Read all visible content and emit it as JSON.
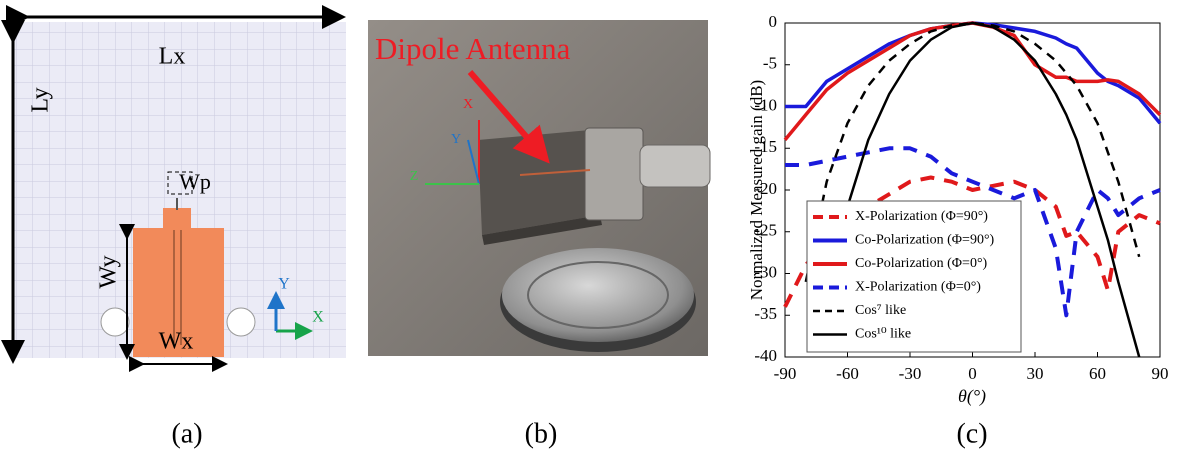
{
  "panels": {
    "a": {
      "labels": {
        "lx": "Lx",
        "ly": "Ly",
        "wp": "Wp",
        "wy": "Wy",
        "wx": "Wx",
        "axis_y": "Y",
        "axis_x": "X"
      },
      "caption": "(a)"
    },
    "b": {
      "label": "Dipole Antenna",
      "axes": {
        "x": "X",
        "y": "Y",
        "z": "Z"
      },
      "caption": "(b)"
    },
    "c": {
      "caption": "(c)"
    }
  },
  "chart_data": {
    "type": "line",
    "xlabel": "θ(°)",
    "ylabel": "Normalized Measured gain (dB)",
    "x": [
      -90,
      -80,
      -70,
      -60,
      -50,
      -40,
      -30,
      -20,
      -10,
      0,
      10,
      20,
      30,
      40,
      45,
      50,
      60,
      65,
      70,
      80,
      90
    ],
    "series": [
      {
        "name": "X-Polarization (Φ=90°)",
        "color": "#e0191b",
        "dashed": true,
        "values": [
          -34,
          -29,
          -26,
          -24,
          -22,
          -20.5,
          -19,
          -18.5,
          -19,
          -20,
          -19.5,
          -19,
          -20,
          -22,
          -25.5,
          -25,
          -28,
          -32,
          -25,
          -23,
          -24
        ]
      },
      {
        "name": "Co-Polarization (Φ=90°)",
        "color": "#1a1adb",
        "dashed": false,
        "values": [
          -10,
          -10,
          -7,
          -5.5,
          -4,
          -2.5,
          -1.5,
          -0.7,
          -0.3,
          0,
          -0.2,
          -0.6,
          -1,
          -1.8,
          -2.5,
          -3,
          -6,
          -7,
          -7.5,
          -9,
          -12
        ]
      },
      {
        "name": "Co-Polarization (Φ=0°)",
        "color": "#e0191b",
        "dashed": false,
        "values": [
          -14,
          -11,
          -8,
          -6,
          -4.5,
          -3,
          -1.5,
          -0.7,
          -0.3,
          0,
          -0.5,
          -1.5,
          -5,
          -6.5,
          -6.5,
          -7,
          -7,
          -6.8,
          -7,
          -8.5,
          -11
        ]
      },
      {
        "name": "X-Polarization (Φ=0°)",
        "color": "#1a1adb",
        "dashed": true,
        "values": [
          -17,
          -17,
          -16.5,
          -16,
          -15.5,
          -15,
          -15,
          -16,
          -18,
          -19,
          -20,
          -21,
          -20,
          -27,
          -35,
          -25,
          -20,
          -21,
          -23,
          -21,
          -20
        ]
      },
      {
        "name": "Cos⁷ like",
        "color": "#000000",
        "dashed": true,
        "values": [
          null,
          -31,
          -19,
          -12,
          -7.5,
          -4.5,
          -2.5,
          -1,
          -0.3,
          0,
          -0.3,
          -1,
          -2.5,
          -4.5,
          -6,
          -7.5,
          -12,
          -15.5,
          -19,
          -28,
          null
        ]
      },
      {
        "name": "Cos¹⁰ like",
        "color": "#000000",
        "dashed": false,
        "values": [
          null,
          null,
          -36,
          -22,
          -14,
          -8.5,
          -4.5,
          -2,
          -0.5,
          0,
          -0.5,
          -2,
          -4.5,
          -8.5,
          -11,
          -14,
          -22,
          -26,
          -31,
          -40,
          null
        ]
      }
    ],
    "xlim": [
      -90,
      90
    ],
    "xticks": [
      -90,
      -60,
      -30,
      0,
      30,
      60,
      90
    ],
    "ylim": [
      -40,
      0
    ],
    "yticks": [
      0,
      -5,
      -10,
      -15,
      -20,
      -25,
      -30,
      -35,
      -40
    ],
    "grid": false,
    "legend": "lower left"
  }
}
